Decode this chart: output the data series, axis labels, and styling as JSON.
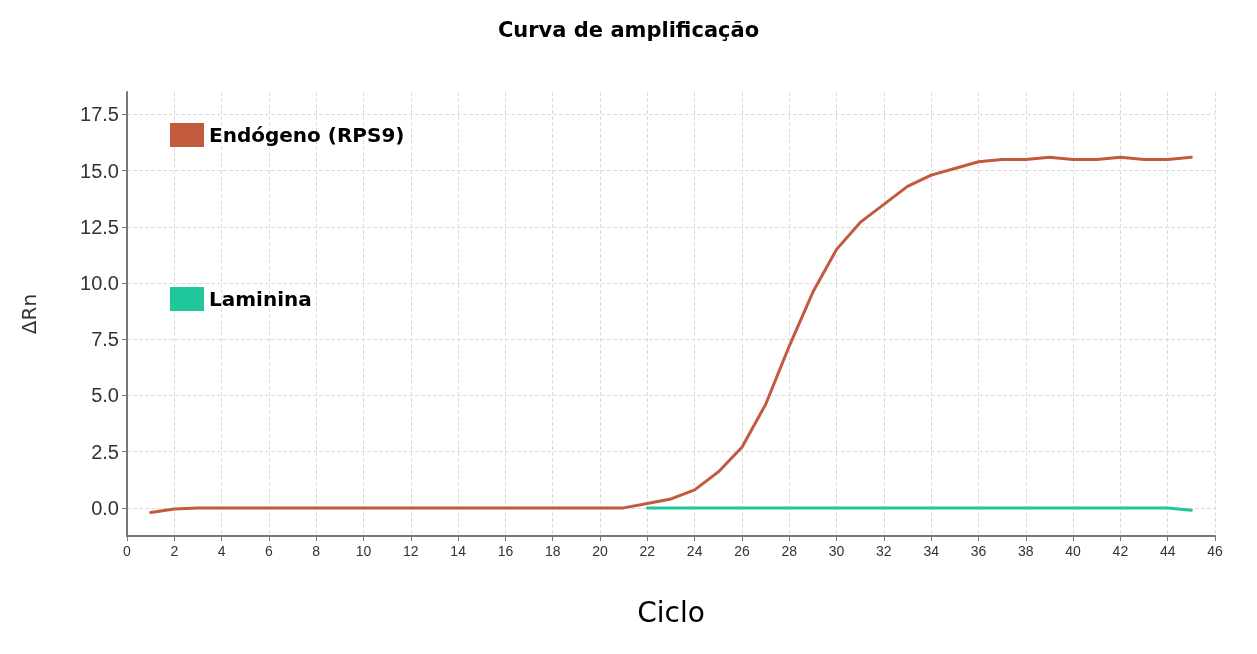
{
  "chart_data": {
    "type": "line",
    "title": "Curva de amplificação",
    "xlabel": "Ciclo",
    "ylabel": "ΔRn",
    "x": [
      1,
      2,
      3,
      4,
      5,
      6,
      7,
      8,
      9,
      10,
      11,
      12,
      13,
      14,
      15,
      16,
      17,
      18,
      19,
      20,
      21,
      22,
      23,
      24,
      25,
      26,
      27,
      28,
      29,
      30,
      31,
      32,
      33,
      34,
      35,
      36,
      37,
      38,
      39,
      40,
      41,
      42,
      43,
      44,
      45
    ],
    "series": [
      {
        "name": "Endógeno (RPS9)",
        "color": "#c25a3e",
        "values": [
          -0.2,
          -0.05,
          0,
          0,
          0,
          0,
          0,
          0,
          0,
          0,
          0,
          0,
          0,
          0,
          0,
          0,
          0,
          0,
          0,
          0,
          0,
          0.2,
          0.4,
          0.8,
          1.6,
          2.7,
          4.6,
          7.2,
          9.6,
          11.5,
          12.7,
          13.5,
          14.3,
          14.8,
          15.1,
          15.4,
          15.5,
          15.5,
          15.6,
          15.5,
          15.5,
          15.6,
          15.5,
          15.5,
          15.6
        ]
      },
      {
        "name": "Laminina",
        "color": "#1fc79a",
        "values": [
          null,
          null,
          null,
          null,
          null,
          null,
          null,
          null,
          null,
          null,
          null,
          null,
          null,
          null,
          null,
          null,
          null,
          null,
          null,
          null,
          null,
          0,
          0,
          0,
          0,
          0,
          0,
          0,
          0,
          0,
          0,
          0,
          0,
          0,
          0,
          0,
          0,
          0,
          0,
          0,
          0,
          0,
          0,
          0,
          -0.1
        ]
      }
    ],
    "xlim": [
      0,
      46
    ],
    "xticks": [
      0,
      2,
      4,
      6,
      8,
      10,
      12,
      14,
      16,
      18,
      20,
      22,
      24,
      26,
      28,
      30,
      32,
      34,
      36,
      38,
      40,
      42,
      44,
      46
    ],
    "ylim": [
      -1.25,
      18.5
    ],
    "yticks": [
      {
        "value": 0,
        "label": "0.0"
      },
      {
        "value": 2.5,
        "label": "2.5"
      },
      {
        "value": 5,
        "label": "5.0"
      },
      {
        "value": 7.5,
        "label": "7.5"
      },
      {
        "value": 10,
        "label": "10.0"
      },
      {
        "value": 12.5,
        "label": "12.5"
      },
      {
        "value": 15,
        "label": "15.0"
      },
      {
        "value": 17.5,
        "label": "17.5"
      }
    ],
    "grid": true,
    "legend": "top left",
    "marker": "none",
    "line_style": "solid"
  }
}
